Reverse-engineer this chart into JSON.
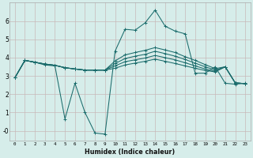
{
  "background_color": "#d6edea",
  "plot_bg_color": "#d6edea",
  "line_color": "#1a6b6b",
  "grid_color": "#c8b8b8",
  "xlabel": "Humidex (Indice chaleur)",
  "x_ticks": [
    0,
    1,
    2,
    3,
    4,
    5,
    6,
    7,
    8,
    9,
    10,
    11,
    12,
    13,
    14,
    15,
    16,
    17,
    18,
    19,
    20,
    21,
    22,
    23
  ],
  "y_ticks": [
    0,
    1,
    2,
    3,
    4,
    5,
    6
  ],
  "y_tick_labels": [
    "-0",
    "1",
    "2",
    "3",
    "4",
    "5",
    "6"
  ],
  "ylim": [
    -0.55,
    7.0
  ],
  "xlim": [
    -0.5,
    23.5
  ],
  "lines": [
    [
      2.9,
      3.85,
      3.75,
      3.6,
      3.55,
      0.65,
      2.6,
      1.0,
      -0.12,
      -0.18,
      4.35,
      5.55,
      5.5,
      5.9,
      6.6,
      5.72,
      5.45,
      5.3,
      3.15,
      3.15,
      3.5,
      2.6,
      2.55,
      2.6
    ],
    [
      2.9,
      3.85,
      3.75,
      3.65,
      3.58,
      3.45,
      3.38,
      3.32,
      3.32,
      3.32,
      3.42,
      3.6,
      3.7,
      3.8,
      3.92,
      3.8,
      3.68,
      3.55,
      3.42,
      3.3,
      3.22,
      3.5,
      2.62,
      2.58
    ],
    [
      2.9,
      3.85,
      3.75,
      3.65,
      3.58,
      3.45,
      3.38,
      3.32,
      3.32,
      3.32,
      3.55,
      3.78,
      3.88,
      3.98,
      4.12,
      4.0,
      3.88,
      3.72,
      3.55,
      3.38,
      3.25,
      3.5,
      2.62,
      2.58
    ],
    [
      2.9,
      3.85,
      3.75,
      3.65,
      3.58,
      3.45,
      3.38,
      3.32,
      3.32,
      3.32,
      3.68,
      3.95,
      4.08,
      4.18,
      4.35,
      4.22,
      4.08,
      3.9,
      3.7,
      3.5,
      3.32,
      3.5,
      2.62,
      2.58
    ],
    [
      2.9,
      3.85,
      3.75,
      3.65,
      3.58,
      3.45,
      3.38,
      3.32,
      3.32,
      3.32,
      3.82,
      4.15,
      4.28,
      4.4,
      4.55,
      4.42,
      4.28,
      4.05,
      3.85,
      3.62,
      3.4,
      3.5,
      2.62,
      2.58
    ]
  ]
}
